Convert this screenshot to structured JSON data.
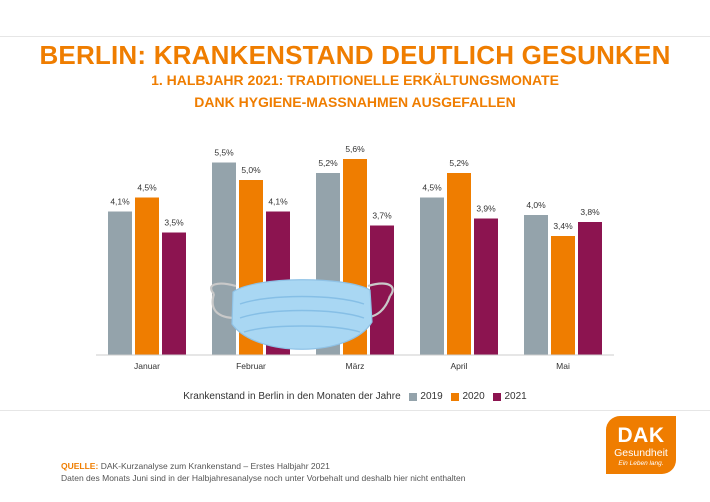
{
  "header": {
    "title": "BERLIN: KRANKENSTAND DEUTLICH GESUNKEN",
    "subtitle_line1": "1. HALBJAHR 2021: TRADITIONELLE ERKÄLTUNGSMONATE",
    "subtitle_line2": "DANK HYGIENE-MASSNAHMEN AUSGEFALLEN"
  },
  "chart_data": {
    "type": "bar",
    "categories": [
      "Januar",
      "Februar",
      "März",
      "April",
      "Mai"
    ],
    "series": [
      {
        "name": "2019",
        "color": "#94a3ab",
        "values": [
          4.1,
          5.5,
          5.2,
          4.5,
          4.0
        ],
        "labels": [
          "4,1%",
          "5,5%",
          "5,2%",
          "4,5%",
          "4,0%"
        ]
      },
      {
        "name": "2020",
        "color": "#ef7d00",
        "values": [
          4.5,
          5.0,
          5.6,
          5.2,
          3.4
        ],
        "labels": [
          "4,5%",
          "5,0%",
          "5,6%",
          "5,2%",
          "3,4%"
        ]
      },
      {
        "name": "2021",
        "color": "#8c1450",
        "values": [
          3.5,
          4.1,
          3.7,
          3.9,
          3.8
        ],
        "labels": [
          "3,5%",
          "4,1%",
          "3,7%",
          "3,9%",
          "3,8%"
        ]
      }
    ],
    "legend_title": "Krankenstand in Berlin in den Monaten der Jahre",
    "legend_position": "bottom-center",
    "ylim": [
      0,
      6
    ],
    "grid": false
  },
  "footer": {
    "source_label": "QUELLE:",
    "source_text": "DAK-Kurzanalyse zum Krankenstand – Erstes Halbjahr 2021",
    "note": "Daten des Monats Juni sind in der Halbjahresanalyse noch unter Vorbehalt und deshalb hier nicht enthalten"
  },
  "logo": {
    "line1": "DAK",
    "line2": "Gesundheit",
    "tagline": "Ein Leben lang."
  },
  "icons": {
    "mask": "face-mask-illustration"
  }
}
